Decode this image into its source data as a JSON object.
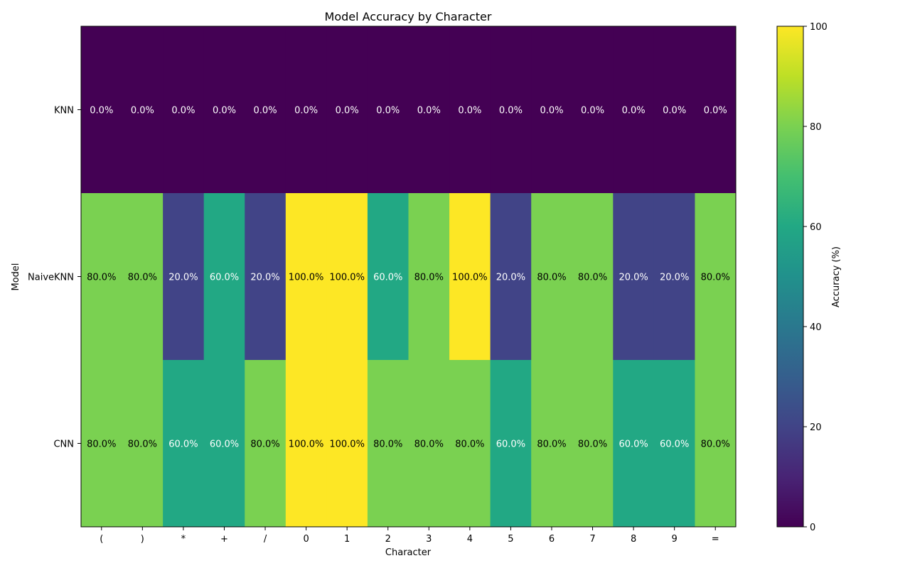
{
  "chart_data": {
    "type": "heatmap",
    "title": "Model Accuracy by Character",
    "xlabel": "Character",
    "ylabel": "Model",
    "x_categories": [
      "(",
      ")",
      "*",
      "+",
      "/",
      "0",
      "1",
      "2",
      "3",
      "4",
      "5",
      "6",
      "7",
      "8",
      "9",
      "="
    ],
    "y_categories": [
      "KNN",
      "NaiveKNN",
      "CNN"
    ],
    "values": [
      [
        0,
        0,
        0,
        0,
        0,
        0,
        0,
        0,
        0,
        0,
        0,
        0,
        0,
        0,
        0,
        0
      ],
      [
        80,
        80,
        20,
        60,
        20,
        100,
        100,
        60,
        80,
        100,
        20,
        80,
        80,
        20,
        20,
        80
      ],
      [
        80,
        80,
        60,
        60,
        80,
        100,
        100,
        80,
        80,
        80,
        60,
        80,
        80,
        60,
        60,
        80
      ]
    ],
    "value_format": "0.0%",
    "colormap": "viridis",
    "vmin": 0,
    "vmax": 100,
    "colorbar": {
      "label": "Accuracy (%)",
      "ticks": [
        0,
        20,
        40,
        60,
        80,
        100
      ]
    },
    "grid": false,
    "legend": "colorbar-right"
  }
}
